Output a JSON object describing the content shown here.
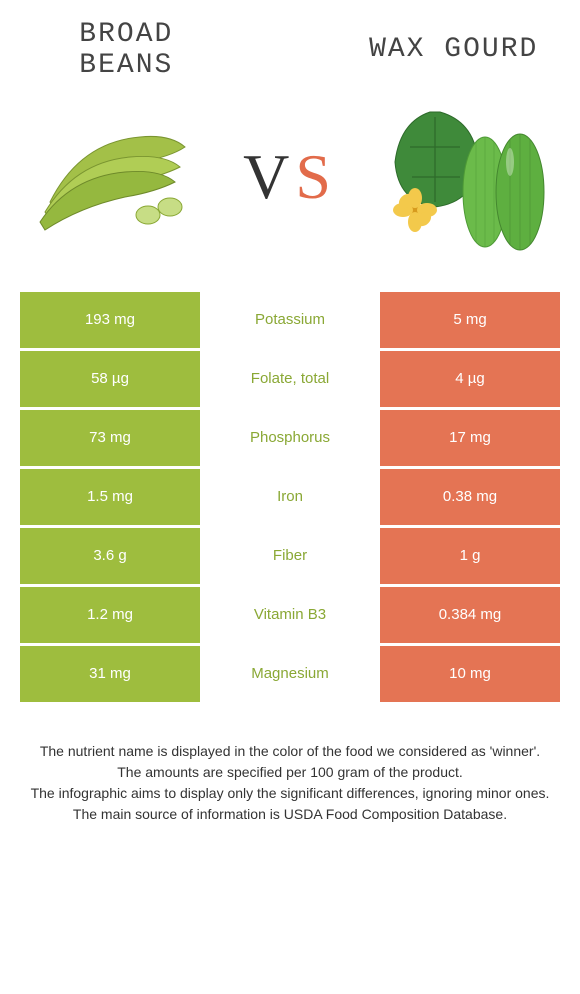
{
  "left": {
    "title": "Broad beans",
    "color": "#9ebd3e"
  },
  "right": {
    "title": "Wax gourd",
    "color": "#e47454"
  },
  "vs": {
    "v": "V",
    "s": "S"
  },
  "label_colors": {
    "left_win": "#8aa835",
    "right_win": "#cd5a3a"
  },
  "rows": [
    {
      "left": "193 mg",
      "label": "Potassium",
      "right": "5 mg",
      "winner": "left"
    },
    {
      "left": "58 µg",
      "label": "Folate, total",
      "right": "4 µg",
      "winner": "left"
    },
    {
      "left": "73 mg",
      "label": "Phosphorus",
      "right": "17 mg",
      "winner": "left"
    },
    {
      "left": "1.5 mg",
      "label": "Iron",
      "right": "0.38 mg",
      "winner": "left"
    },
    {
      "left": "3.6 g",
      "label": "Fiber",
      "right": "1 g",
      "winner": "left"
    },
    {
      "left": "1.2 mg",
      "label": "Vitamin B3",
      "right": "0.384 mg",
      "winner": "left"
    },
    {
      "left": "31 mg",
      "label": "Magnesium",
      "right": "10 mg",
      "winner": "left"
    }
  ],
  "footer": [
    "The nutrient name is displayed in the color of the food we considered as 'winner'.",
    "The amounts are specified per 100 gram of the product.",
    "The infographic aims to display only the significant differences, ignoring minor ones.",
    "The main source of information is USDA Food Composition Database."
  ]
}
